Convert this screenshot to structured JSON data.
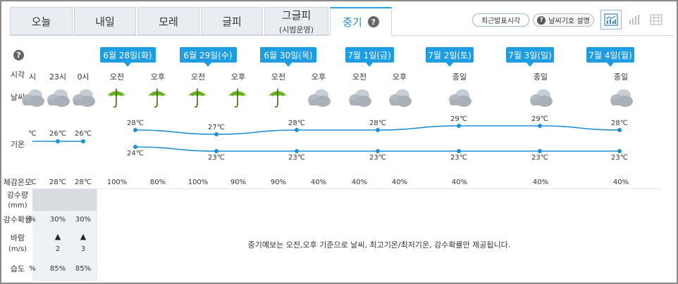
{
  "tabs": [
    {
      "label": "오늘",
      "sub": ""
    },
    {
      "label": "내일",
      "sub": ""
    },
    {
      "label": "모레",
      "sub": ""
    },
    {
      "label": "글피",
      "sub": ""
    },
    {
      "label": "그글피",
      "sub": "(시범운영)"
    },
    {
      "label": "중기",
      "sub": ""
    }
  ],
  "tools": {
    "latest": "최근발표시각",
    "symbols": "날씨기호 설명",
    "help_glyph": "?"
  },
  "row_labels": {
    "time": "시각",
    "weather": "날씨",
    "temp": "기온",
    "feels": "체감온도",
    "rain_amount": "강수량",
    "rain_unit": "(mm)",
    "rain_prob": "강수확률",
    "wind": "바람",
    "wind_unit": "(m/s)",
    "humidity": "습도"
  },
  "left_cols": {
    "times": [
      "시",
      "23시",
      "0시"
    ],
    "temps": [
      "℃",
      "26℃",
      "26℃"
    ],
    "feels": [
      "℃",
      "28℃",
      "28℃"
    ],
    "rain_prob": [
      "%",
      "30%",
      "30%"
    ],
    "wind_speed": [
      "",
      "2",
      "3"
    ],
    "humidity": [
      "%",
      "85%",
      "85%"
    ]
  },
  "dates": [
    "6월 28일(화)",
    "6월 29일(수)",
    "6월 30일(목)",
    "7월 1일(금)",
    "7월 2일(토)",
    "7월 3일(일)",
    "7월 4일(월)"
  ],
  "periods": [
    {
      "label": "오전",
      "icon": "umbrella-icon",
      "pct": "100%"
    },
    {
      "label": "오후",
      "icon": "umbrella-icon",
      "pct": "80%"
    },
    {
      "label": "오전",
      "icon": "umbrella-icon",
      "pct": "100%"
    },
    {
      "label": "오후",
      "icon": "umbrella-icon",
      "pct": "90%"
    },
    {
      "label": "오전",
      "icon": "umbrella-icon",
      "pct": "90%"
    },
    {
      "label": "오후",
      "icon": "cloudy-icon",
      "pct": "40%"
    },
    {
      "label": "오전",
      "icon": "cloudy-icon",
      "pct": "40%"
    },
    {
      "label": "오후",
      "icon": "cloudy-icon",
      "pct": "40%"
    },
    {
      "label": "종일",
      "icon": "cloudy-icon",
      "pct": "40%"
    },
    {
      "label": "종일",
      "icon": "cloudy-icon",
      "pct": "40%"
    },
    {
      "label": "종일",
      "icon": "cloudy-icon",
      "pct": "40%"
    }
  ],
  "high_temps": [
    28,
    27,
    28,
    28,
    29,
    29,
    28
  ],
  "low_temps": [
    24,
    23,
    23,
    23,
    23,
    23,
    23
  ],
  "temp_unit": "℃",
  "notice": "중기예보는 오전,오후 기준으로 날씨, 최고기온/최저기온, 강수확률만 제공됩니다.",
  "colors": {
    "accent": "#1f9de3",
    "line": "#1f8fd6",
    "umbrella": "#66b31f",
    "cloud": "#b5bcc4"
  }
}
